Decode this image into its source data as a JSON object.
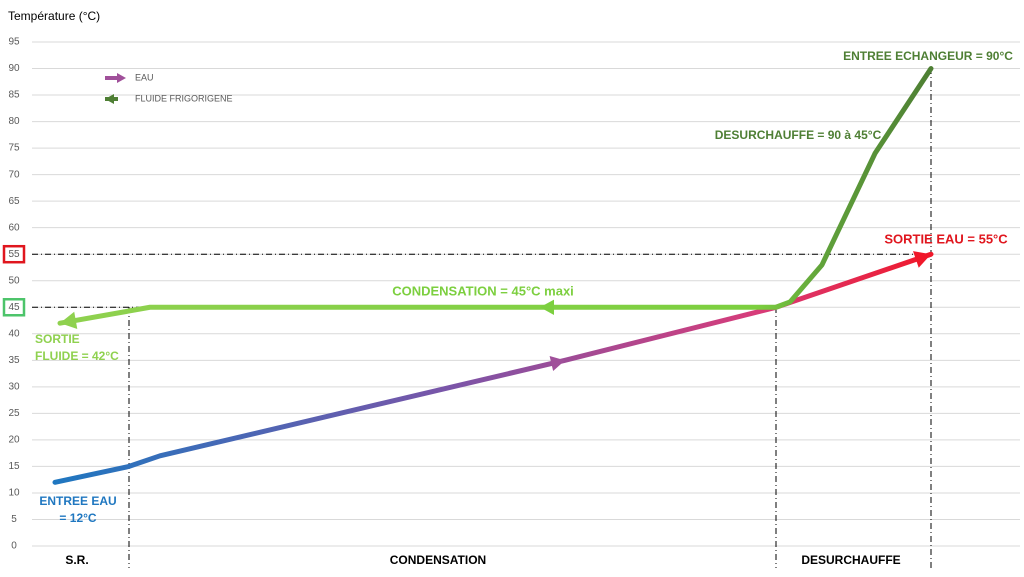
{
  "chart_data": {
    "type": "line",
    "y_label": "Température (°C)",
    "ylim": [
      0,
      95
    ],
    "yticks": [
      0,
      5,
      10,
      15,
      20,
      25,
      30,
      35,
      40,
      45,
      50,
      55,
      60,
      65,
      70,
      75,
      80,
      85,
      90,
      95
    ],
    "grid": true,
    "reference_lines": [
      {
        "value": 55,
        "color": "#e0161e"
      },
      {
        "value": 45,
        "color": "#4cc46a"
      }
    ],
    "series": [
      {
        "name": "EAU",
        "color": "#a0509a",
        "values": [
          12,
          15,
          17,
          35,
          45,
          55
        ]
      },
      {
        "name": "FLUIDE FRIGORIGENE",
        "color": "#4e7f34",
        "values": [
          90,
          74,
          53,
          46,
          45,
          45,
          45,
          42
        ]
      }
    ],
    "zones": [
      "S.R.",
      "CONDENSATION",
      "DESURCHAUFFE"
    ],
    "annotations": [
      "ENTREE ECHANGEUR = 90°C",
      "DESURCHAUFFE = 90 à 45°C",
      "SORTIE EAU = 55°C",
      "CONDENSATION = 45°C maxi",
      "SORTIE",
      "FLUIDE = 42°C",
      "ENTREE EAU",
      "= 12°C"
    ]
  }
}
